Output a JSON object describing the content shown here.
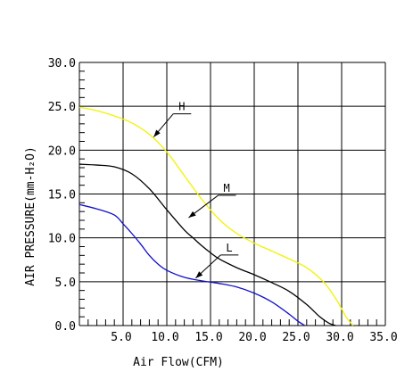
{
  "chart_data": {
    "type": "line",
    "title": "",
    "xlabel": "Air Flow(CFM)",
    "ylabel": "AIR PRESSURE(mm-H₂O)",
    "xlim": [
      0,
      35
    ],
    "ylim": [
      0,
      30
    ],
    "x_ticks": [
      5,
      10,
      15,
      20,
      25,
      30,
      35
    ],
    "x_tick_labels": [
      "5.0",
      "10.0",
      "15.0",
      "20.0",
      "25.0",
      "30.0",
      "35.0"
    ],
    "y_ticks": [
      0,
      5,
      10,
      15,
      20,
      25,
      30
    ],
    "y_tick_labels": [
      "0.0",
      "5.0",
      "10.0",
      "15.0",
      "20.0",
      "25.0",
      "30.0"
    ],
    "grid": true,
    "series": [
      {
        "name": "H",
        "color": "#f2f200",
        "x": [
          0,
          2,
          4,
          6,
          8,
          10,
          12,
          14,
          16,
          18,
          20,
          22,
          24,
          26,
          28,
          29.5,
          30.5,
          31.3
        ],
        "y": [
          24.9,
          24.5,
          23.9,
          23.1,
          21.8,
          19.8,
          17.1,
          14.4,
          12.1,
          10.5,
          9.4,
          8.5,
          7.6,
          6.6,
          4.9,
          2.8,
          1.0,
          0
        ]
      },
      {
        "name": "M",
        "color": "#000000",
        "x": [
          0,
          2,
          4,
          6,
          8,
          10,
          12,
          13,
          14,
          15,
          16,
          18,
          20,
          22,
          24,
          26,
          27.5,
          28.5,
          29.3
        ],
        "y": [
          18.4,
          18.3,
          18.1,
          17.3,
          15.6,
          13.2,
          10.9,
          10.0,
          9.1,
          8.3,
          7.6,
          6.6,
          5.8,
          4.9,
          3.9,
          2.4,
          1.0,
          0.3,
          0
        ]
      },
      {
        "name": "L",
        "color": "#1010c8",
        "x": [
          0,
          2,
          4,
          5,
          6,
          7,
          8,
          9,
          10,
          12,
          14,
          16,
          18,
          20,
          22,
          24,
          25,
          25.8
        ],
        "y": [
          13.8,
          13.3,
          12.6,
          11.6,
          10.5,
          9.3,
          8.0,
          7.0,
          6.3,
          5.5,
          5.1,
          4.8,
          4.4,
          3.7,
          2.7,
          1.3,
          0.5,
          0
        ]
      }
    ],
    "annotations": [
      {
        "text": "H",
        "series": "H",
        "at_x": 8.5,
        "at_y": 21.5
      },
      {
        "text": "M",
        "series": "M",
        "at_x": 12.5,
        "at_y": 12.3
      },
      {
        "text": "L",
        "series": "L",
        "at_x": 13.3,
        "at_y": 5.4
      }
    ]
  }
}
